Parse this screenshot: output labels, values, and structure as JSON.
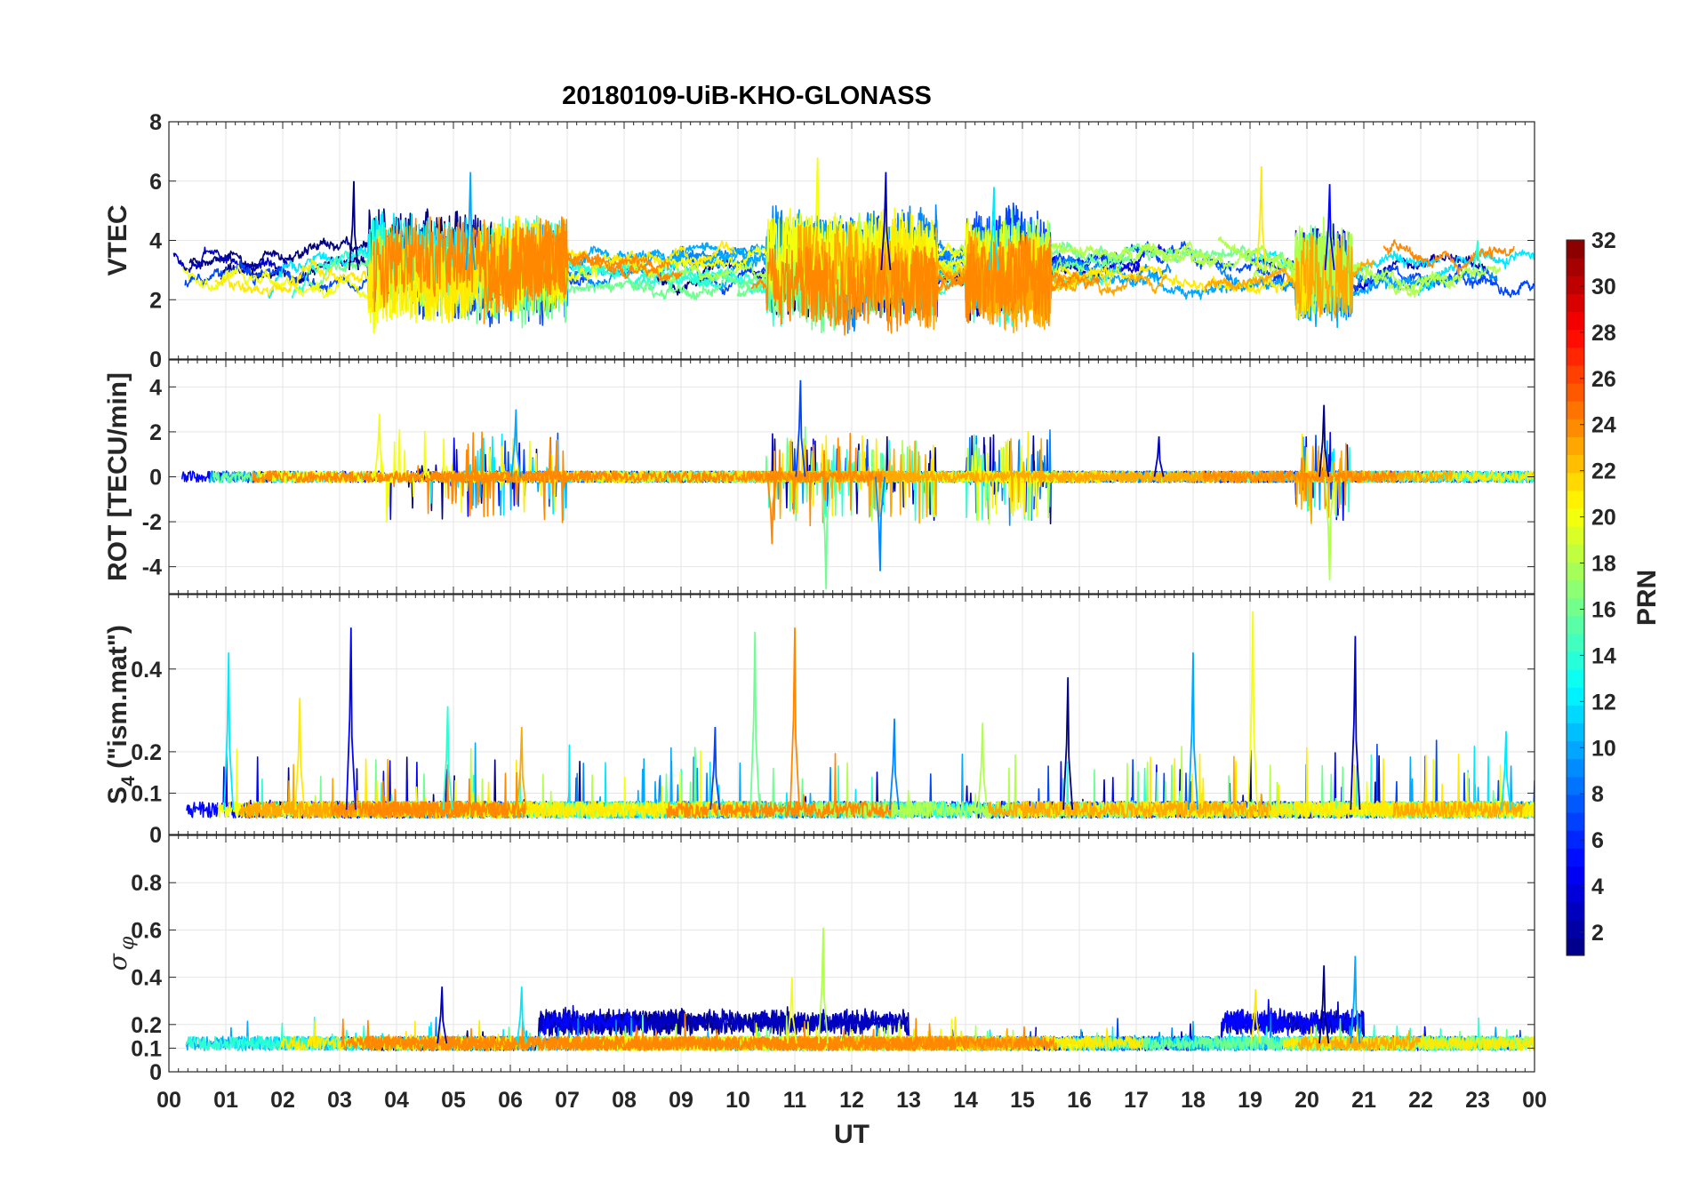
{
  "chart_data": {
    "type": "line",
    "title": "20180109-UiB-KHO-GLONASS",
    "xlabel": "UT",
    "x_tick_labels": [
      "00",
      "01",
      "02",
      "03",
      "04",
      "05",
      "06",
      "07",
      "08",
      "09",
      "10",
      "11",
      "12",
      "13",
      "14",
      "15",
      "16",
      "17",
      "18",
      "19",
      "20",
      "21",
      "22",
      "23",
      "00"
    ],
    "xlim_hours": [
      0,
      24
    ],
    "panels": [
      {
        "id": "vtec",
        "ylabel": "VTEC",
        "ylim": [
          0,
          8
        ],
        "ytick_values": [
          0,
          2,
          4,
          6,
          8
        ],
        "ytick_labels": [
          "0",
          "2",
          "4",
          "6",
          "8"
        ],
        "baseline": 3.0,
        "noise": 0.6,
        "spike_scale": 1.2,
        "active_windows": [
          [
            3.5,
            7.0
          ],
          [
            10.5,
            13.5
          ],
          [
            14.0,
            15.5
          ],
          [
            19.8,
            20.8
          ]
        ],
        "peaks": [
          {
            "t": 3.25,
            "v": 6.0
          },
          {
            "t": 5.3,
            "v": 6.3
          },
          {
            "t": 11.4,
            "v": 6.8
          },
          {
            "t": 12.6,
            "v": 6.3
          },
          {
            "t": 14.5,
            "v": 5.8
          },
          {
            "t": 19.2,
            "v": 6.5
          },
          {
            "t": 20.4,
            "v": 5.9
          },
          {
            "t": 23.0,
            "v": 4.0
          }
        ]
      },
      {
        "id": "rot",
        "ylabel": "ROT [TECU/min]",
        "ylim": [
          -5.2,
          5.2
        ],
        "ytick_values": [
          -4,
          -2,
          0,
          2,
          4
        ],
        "ytick_labels": [
          "-4",
          "-2",
          "0",
          "2",
          "4"
        ],
        "baseline": 0,
        "noise": 0.25,
        "spike_scale": 2.0,
        "active_windows": [
          [
            3.5,
            7.0
          ],
          [
            10.5,
            13.5
          ],
          [
            14.0,
            15.5
          ],
          [
            19.8,
            20.8
          ]
        ],
        "peaks": [
          {
            "t": 11.1,
            "v": 4.3
          },
          {
            "t": 11.55,
            "v": -5.0
          },
          {
            "t": 10.6,
            "v": -3.0
          },
          {
            "t": 12.5,
            "v": -4.2
          },
          {
            "t": 20.4,
            "v": -4.6
          },
          {
            "t": 20.3,
            "v": 3.2
          },
          {
            "t": 6.1,
            "v": 3.0
          },
          {
            "t": 3.7,
            "v": 2.8
          },
          {
            "t": 17.4,
            "v": 1.8
          }
        ]
      },
      {
        "id": "s4",
        "ylabel": "S",
        "ylabel_sub": "4",
        "ylabel_rest": " (\"ism.mat\")",
        "ylim": [
          0,
          0.58
        ],
        "ytick_values": [
          0,
          0.1,
          0.2,
          0.4
        ],
        "ytick_labels": [
          "0",
          "0.1",
          "0.2",
          "0.4"
        ],
        "baseline": 0.06,
        "noise": 0.02,
        "spike_scale": 0.15,
        "active_windows": [],
        "peaks": [
          {
            "t": 1.05,
            "v": 0.44
          },
          {
            "t": 2.3,
            "v": 0.33
          },
          {
            "t": 3.2,
            "v": 0.5
          },
          {
            "t": 4.9,
            "v": 0.31
          },
          {
            "t": 6.2,
            "v": 0.26
          },
          {
            "t": 9.6,
            "v": 0.26
          },
          {
            "t": 10.3,
            "v": 0.49
          },
          {
            "t": 11.0,
            "v": 0.5
          },
          {
            "t": 12.75,
            "v": 0.28
          },
          {
            "t": 14.3,
            "v": 0.27
          },
          {
            "t": 15.8,
            "v": 0.38
          },
          {
            "t": 18.0,
            "v": 0.44
          },
          {
            "t": 19.05,
            "v": 0.54
          },
          {
            "t": 20.85,
            "v": 0.48
          },
          {
            "t": 23.5,
            "v": 0.25
          }
        ]
      },
      {
        "id": "sigma",
        "ylabel": "σ",
        "ylabel_sub": "φ",
        "ylim": [
          0,
          1
        ],
        "ytick_values": [
          0,
          0.1,
          0.2,
          0.4,
          0.6,
          0.8
        ],
        "ytick_labels": [
          "0",
          "0.1",
          "0.2",
          "0.4",
          "0.6",
          "0.8"
        ],
        "baseline": 0.12,
        "noise": 0.03,
        "spike_scale": 0.1,
        "active_windows": [
          [
            6.5,
            13.0
          ],
          [
            18.5,
            21.0
          ]
        ],
        "peaks": [
          {
            "t": 11.5,
            "v": 0.61
          },
          {
            "t": 20.3,
            "v": 0.45
          },
          {
            "t": 20.85,
            "v": 0.49
          },
          {
            "t": 10.95,
            "v": 0.4
          },
          {
            "t": 4.8,
            "v": 0.36
          },
          {
            "t": 6.2,
            "v": 0.36
          },
          {
            "t": 19.1,
            "v": 0.35
          }
        ]
      }
    ],
    "series_prn": [
      1,
      3,
      5,
      7,
      9,
      10,
      12,
      14,
      16,
      18,
      20,
      21,
      23,
      24
    ],
    "colorbar": {
      "label": "PRN",
      "range": [
        1,
        32
      ],
      "tick_values": [
        2,
        4,
        6,
        8,
        10,
        12,
        14,
        16,
        18,
        20,
        22,
        24,
        26,
        28,
        30,
        32
      ],
      "tick_labels": [
        "2",
        "4",
        "6",
        "8",
        "10",
        "12",
        "14",
        "16",
        "18",
        "20",
        "22",
        "24",
        "26",
        "28",
        "30",
        "32"
      ],
      "colormap": "jet"
    }
  }
}
